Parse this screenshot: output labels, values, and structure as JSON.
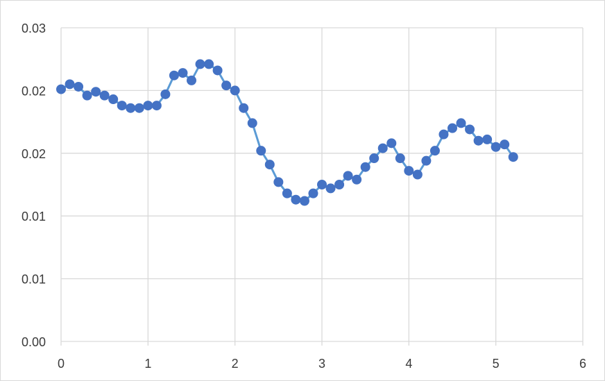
{
  "chart_data": {
    "type": "line",
    "title": "",
    "xlabel": "",
    "ylabel": "",
    "xlim": [
      0,
      6
    ],
    "ylim": [
      0,
      0.025
    ],
    "grid": true,
    "legend": "none",
    "x_ticks": [
      0,
      1,
      2,
      3,
      4,
      5,
      6
    ],
    "x_tick_labels": [
      "0",
      "1",
      "2",
      "3",
      "4",
      "5",
      "6"
    ],
    "y_ticks": [
      0,
      0.005,
      0.01,
      0.015,
      0.02,
      0.025
    ],
    "y_tick_labels": [
      "0.00",
      "0.01",
      "0.01",
      "0.02",
      "0.02",
      "0.03"
    ],
    "colors": {
      "line": "#5b9bd5",
      "marker": "#4472c4",
      "grid": "#d9d9d9",
      "text": "#3a3a3a"
    },
    "series": [
      {
        "x": [
          0,
          0.1,
          0.2,
          0.3,
          0.4,
          0.5,
          0.6,
          0.7,
          0.8,
          0.9,
          1.0,
          1.1,
          1.2,
          1.3,
          1.4,
          1.5,
          1.6,
          1.7,
          1.8,
          1.9,
          2.0,
          2.1,
          2.2,
          2.3,
          2.4,
          2.5,
          2.6,
          2.7,
          2.8,
          2.9,
          3.0,
          3.1,
          3.2,
          3.3,
          3.4,
          3.5,
          3.6,
          3.7,
          3.8,
          3.9,
          4.0,
          4.1,
          4.2,
          4.3,
          4.4,
          4.5,
          4.6,
          4.7,
          4.8,
          4.9,
          5.0,
          5.1,
          5.2
        ],
        "y": [
          0.0201,
          0.0205,
          0.0203,
          0.0196,
          0.0199,
          0.0196,
          0.0193,
          0.0188,
          0.0186,
          0.0186,
          0.0188,
          0.0188,
          0.0197,
          0.0212,
          0.0214,
          0.0208,
          0.0221,
          0.0221,
          0.0216,
          0.0204,
          0.02,
          0.0186,
          0.0174,
          0.0152,
          0.0141,
          0.0127,
          0.0118,
          0.0113,
          0.0112,
          0.0118,
          0.0125,
          0.0122,
          0.0125,
          0.0132,
          0.0129,
          0.0139,
          0.0146,
          0.0154,
          0.0158,
          0.0146,
          0.0136,
          0.0133,
          0.0144,
          0.0152,
          0.0165,
          0.017,
          0.0174,
          0.0169,
          0.016,
          0.0161,
          0.0155,
          0.0157,
          0.0147
        ]
      }
    ]
  }
}
